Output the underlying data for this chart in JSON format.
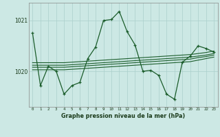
{
  "bg_color": "#cce8e4",
  "grid_color": "#aacfcb",
  "line_color": "#1a5c2a",
  "xlabel": "Graphe pression niveau de la mer (hPa)",
  "yticks": [
    1020,
    1021
  ],
  "xticks": [
    0,
    1,
    2,
    3,
    4,
    5,
    6,
    7,
    8,
    9,
    10,
    11,
    12,
    13,
    14,
    15,
    16,
    17,
    18,
    19,
    20,
    21,
    22,
    23
  ],
  "xlim": [
    -0.5,
    23.5
  ],
  "ylim": [
    1019.3,
    1021.35
  ],
  "series": {
    "main": [
      1020.75,
      1019.72,
      1020.1,
      1020.0,
      1019.55,
      1019.72,
      1019.78,
      1020.25,
      1020.48,
      1021.0,
      1021.02,
      1021.18,
      1020.78,
      1020.52,
      1020.0,
      1020.02,
      1019.92,
      1019.55,
      1019.45,
      1020.18,
      1020.3,
      1020.5,
      1020.45,
      1020.38
    ],
    "flat1": [
      1020.12,
      1020.12,
      1020.12,
      1020.12,
      1020.12,
      1020.13,
      1020.14,
      1020.15,
      1020.16,
      1020.17,
      1020.18,
      1020.19,
      1020.2,
      1020.21,
      1020.22,
      1020.23,
      1020.24,
      1020.25,
      1020.26,
      1020.27,
      1020.28,
      1020.3,
      1020.32,
      1020.35
    ],
    "flat2": [
      1020.17,
      1020.17,
      1020.17,
      1020.17,
      1020.17,
      1020.18,
      1020.19,
      1020.2,
      1020.21,
      1020.22,
      1020.23,
      1020.24,
      1020.25,
      1020.26,
      1020.27,
      1020.28,
      1020.29,
      1020.3,
      1020.31,
      1020.32,
      1020.33,
      1020.35,
      1020.37,
      1020.4
    ],
    "flat3": [
      1020.08,
      1020.08,
      1020.08,
      1020.08,
      1020.08,
      1020.09,
      1020.1,
      1020.11,
      1020.12,
      1020.13,
      1020.14,
      1020.15,
      1020.16,
      1020.17,
      1020.18,
      1020.19,
      1020.2,
      1020.21,
      1020.22,
      1020.23,
      1020.24,
      1020.27,
      1020.29,
      1020.32
    ],
    "flat4": [
      1020.03,
      1020.03,
      1020.03,
      1020.03,
      1020.03,
      1020.04,
      1020.05,
      1020.06,
      1020.07,
      1020.08,
      1020.09,
      1020.1,
      1020.11,
      1020.12,
      1020.13,
      1020.14,
      1020.15,
      1020.16,
      1020.17,
      1020.18,
      1020.19,
      1020.22,
      1020.25,
      1020.28
    ]
  }
}
